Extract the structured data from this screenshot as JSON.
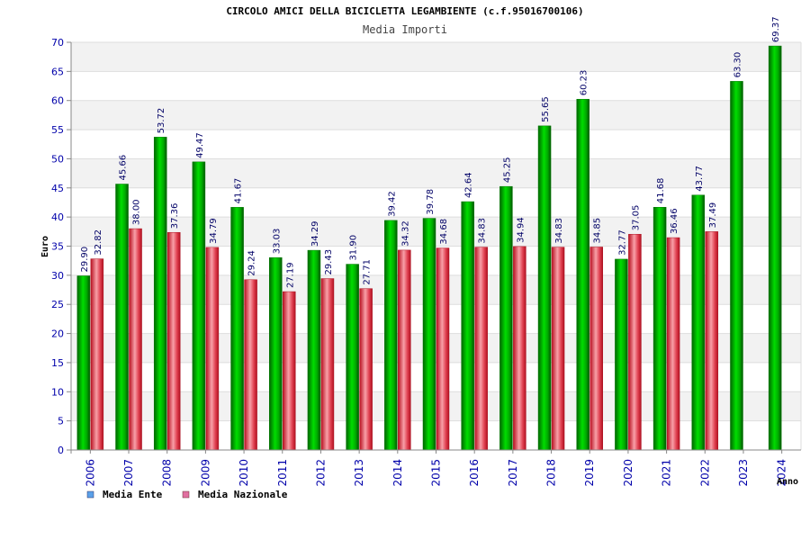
{
  "chart_data": {
    "type": "bar",
    "title": "CIRCOLO AMICI DELLA BICICLETTA LEGAMBIENTE (c.f.95016700106)",
    "subtitle": "Media Importi",
    "xlabel": "Anno",
    "ylabel": "Euro",
    "ylim": [
      0,
      70
    ],
    "yticks": [
      "0",
      "5",
      "10",
      "15",
      "20",
      "25",
      "30",
      "35",
      "40",
      "45",
      "50",
      "55",
      "60",
      "65",
      "70"
    ],
    "categories": [
      "2006",
      "2007",
      "2008",
      "2009",
      "2010",
      "2011",
      "2012",
      "2013",
      "2014",
      "2015",
      "2016",
      "2017",
      "2018",
      "2019",
      "2020",
      "2021",
      "2022",
      "2023",
      "2024"
    ],
    "series": [
      {
        "name": "Media Ente",
        "color": "#00bb00",
        "legend_color": "#5aa0e8",
        "values": [
          29.9,
          45.66,
          53.72,
          49.47,
          41.67,
          33.03,
          34.29,
          31.9,
          39.42,
          39.78,
          42.64,
          45.25,
          55.65,
          60.23,
          32.77,
          41.68,
          43.77,
          63.3,
          69.37
        ],
        "labels": [
          "29.90",
          "45.66",
          "53.72",
          "49.47",
          "41.67",
          "33.03",
          "34.29",
          "31.90",
          "39.42",
          "39.78",
          "42.64",
          "45.25",
          "55.65",
          "60.23",
          "32.77",
          "41.68",
          "43.77",
          "63.30",
          "69.37"
        ]
      },
      {
        "name": "Media Nazionale",
        "color": "#e8404a",
        "legend_color": "#e070a0",
        "values": [
          32.82,
          38.0,
          37.36,
          34.79,
          29.24,
          27.19,
          29.43,
          27.71,
          34.32,
          34.68,
          34.83,
          34.94,
          34.83,
          34.85,
          37.05,
          36.46,
          37.49,
          null,
          null
        ],
        "labels": [
          "32.82",
          "38.00",
          "37.36",
          "34.79",
          "29.24",
          "27.19",
          "29.43",
          "27.71",
          "34.32",
          "34.68",
          "34.83",
          "34.94",
          "34.83",
          "34.85",
          "37.05",
          "36.46",
          "37.49",
          null,
          null
        ]
      }
    ],
    "grid": true,
    "legend_position": "bottom-left"
  }
}
